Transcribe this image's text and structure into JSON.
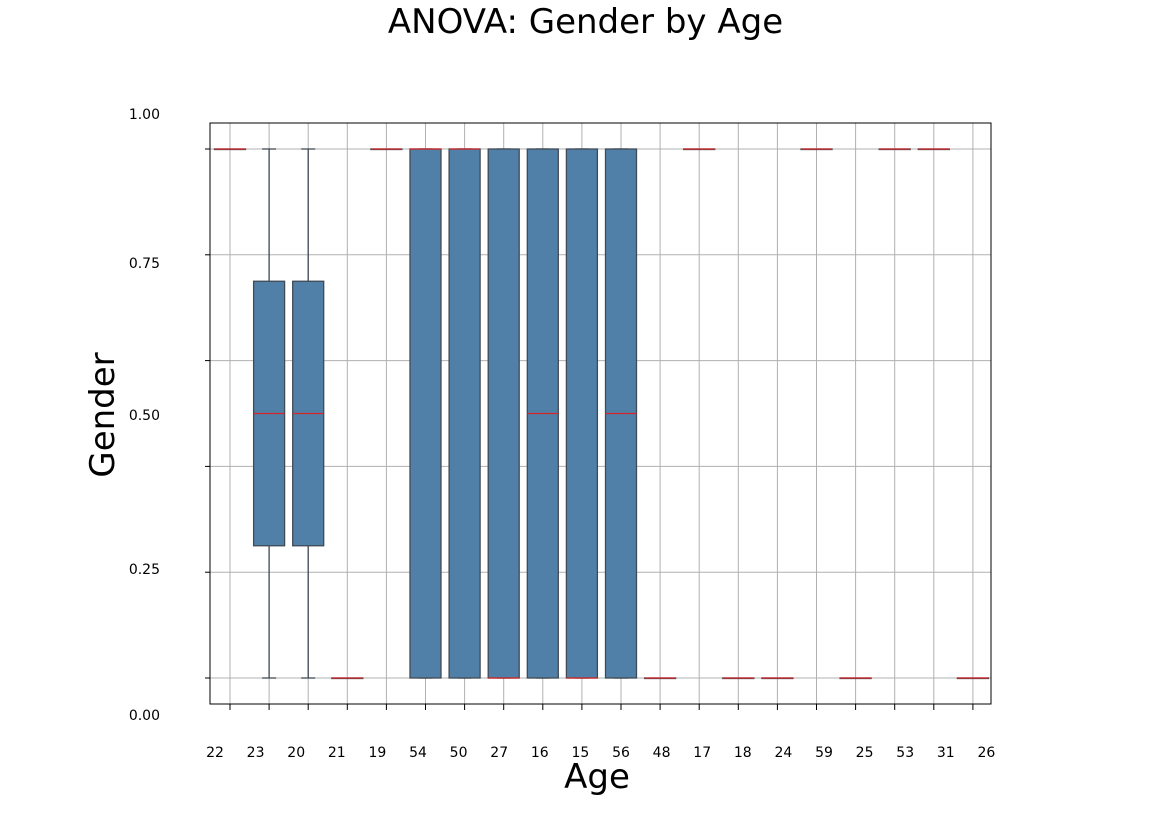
{
  "chart_data": {
    "type": "box",
    "title": "ANOVA: Gender by Age",
    "xlabel": "Age",
    "ylabel": "Gender",
    "y_tick_labels": [
      "0.00",
      "0.25",
      "0.50",
      "0.75",
      "1.00"
    ],
    "ylim": [
      0.0,
      1.0
    ],
    "grid": true,
    "colors": {
      "box_fill": "#5080a8",
      "box_edge": "#404a55",
      "median": "#d62728",
      "grid": "#b0b0b0"
    },
    "categories": [
      "22",
      "23",
      "20",
      "21",
      "19",
      "54",
      "50",
      "27",
      "16",
      "15",
      "56",
      "48",
      "17",
      "18",
      "24",
      "59",
      "25",
      "53",
      "31",
      "26"
    ],
    "boxes": [
      {
        "category": "22",
        "q1": 1,
        "median": 1,
        "q3": 1,
        "whisker_low": 1,
        "whisker_high": 1
      },
      {
        "category": "23",
        "q1": 0.25,
        "median": 0.5,
        "q3": 0.75,
        "whisker_low": 0,
        "whisker_high": 1
      },
      {
        "category": "20",
        "q1": 0.25,
        "median": 0.5,
        "q3": 0.75,
        "whisker_low": 0,
        "whisker_high": 1
      },
      {
        "category": "21",
        "q1": 0,
        "median": 0,
        "q3": 0,
        "whisker_low": 0,
        "whisker_high": 0
      },
      {
        "category": "19",
        "q1": 1,
        "median": 1,
        "q3": 1,
        "whisker_low": 1,
        "whisker_high": 1
      },
      {
        "category": "54",
        "q1": 0,
        "median": 1,
        "q3": 1,
        "whisker_low": 0,
        "whisker_high": 1
      },
      {
        "category": "50",
        "q1": 0,
        "median": 1,
        "q3": 1,
        "whisker_low": 0,
        "whisker_high": 1
      },
      {
        "category": "27",
        "q1": 0,
        "median": 0,
        "q3": 1,
        "whisker_low": 0,
        "whisker_high": 1
      },
      {
        "category": "16",
        "q1": 0,
        "median": 0.5,
        "q3": 1,
        "whisker_low": 0,
        "whisker_high": 1
      },
      {
        "category": "15",
        "q1": 0,
        "median": 0,
        "q3": 1,
        "whisker_low": 0,
        "whisker_high": 1
      },
      {
        "category": "56",
        "q1": 0,
        "median": 0.5,
        "q3": 1,
        "whisker_low": 0,
        "whisker_high": 1
      },
      {
        "category": "48",
        "q1": 0,
        "median": 0,
        "q3": 0,
        "whisker_low": 0,
        "whisker_high": 0
      },
      {
        "category": "17",
        "q1": 1,
        "median": 1,
        "q3": 1,
        "whisker_low": 1,
        "whisker_high": 1
      },
      {
        "category": "18",
        "q1": 0,
        "median": 0,
        "q3": 0,
        "whisker_low": 0,
        "whisker_high": 0
      },
      {
        "category": "24",
        "q1": 0,
        "median": 0,
        "q3": 0,
        "whisker_low": 0,
        "whisker_high": 0
      },
      {
        "category": "59",
        "q1": 1,
        "median": 1,
        "q3": 1,
        "whisker_low": 1,
        "whisker_high": 1
      },
      {
        "category": "25",
        "q1": 0,
        "median": 0,
        "q3": 0,
        "whisker_low": 0,
        "whisker_high": 0
      },
      {
        "category": "53",
        "q1": 1,
        "median": 1,
        "q3": 1,
        "whisker_low": 1,
        "whisker_high": 1
      },
      {
        "category": "31",
        "q1": 1,
        "median": 1,
        "q3": 1,
        "whisker_low": 1,
        "whisker_high": 1
      },
      {
        "category": "26",
        "q1": 0,
        "median": 0,
        "q3": 0,
        "whisker_low": 0,
        "whisker_high": 0
      }
    ]
  }
}
